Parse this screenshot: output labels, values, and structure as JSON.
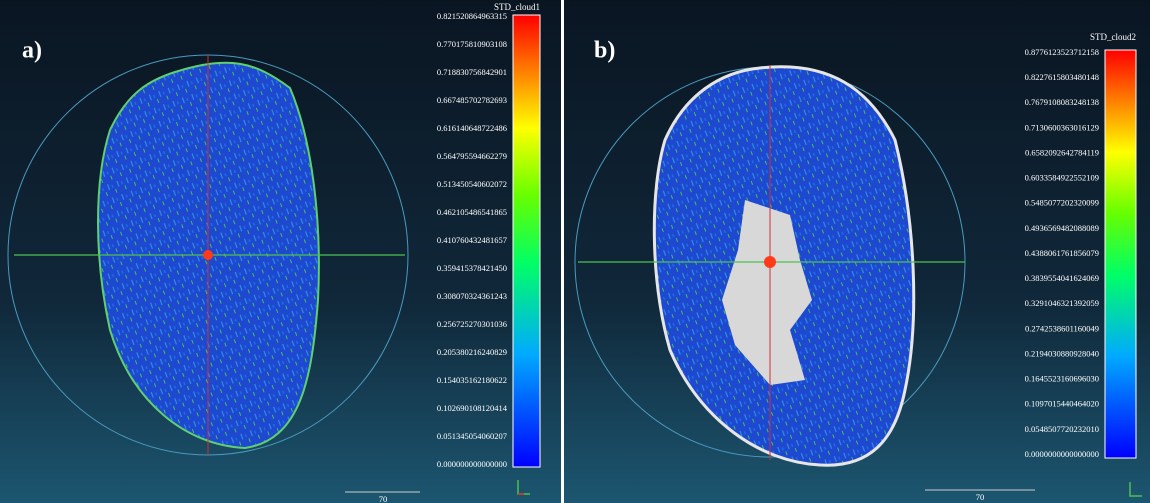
{
  "panels": [
    {
      "label": "a)",
      "scale": {
        "title": "STD_cloud1",
        "ticks": [
          "0.821520864963315",
          "0.770175810903108",
          "0.718830756842901",
          "0.667485702782693",
          "0.616140648722486",
          "0.564795594662279",
          "0.513450540602072",
          "0.462105486541865",
          "0.410760432481657",
          "0.359415378421450",
          "0.308070324361243",
          "0.256725270301036",
          "0.205380216240829",
          "0.154035162180622",
          "0.102690108120414",
          "0.051345054060207",
          "0.000000000000000"
        ]
      },
      "scale_bar": "70"
    },
    {
      "label": "b)",
      "scale": {
        "title": "STD_cloud2",
        "ticks": [
          "0.8776123523712158",
          "0.8227615803480148",
          "0.7679108083248138",
          "0.7130600363016129",
          "0.6582092642784119",
          "0.6033584922552109",
          "0.5485077202320099",
          "0.4936569482088089",
          "0.4388061761856079",
          "0.3839554041624069",
          "0.3291046321392059",
          "0.2742538601160049",
          "0.2194030880928040",
          "0.1645523160696030",
          "0.1097015440464020",
          "0.0548507720232010",
          "0.0000000000000000"
        ]
      },
      "scale_bar": "70"
    }
  ]
}
